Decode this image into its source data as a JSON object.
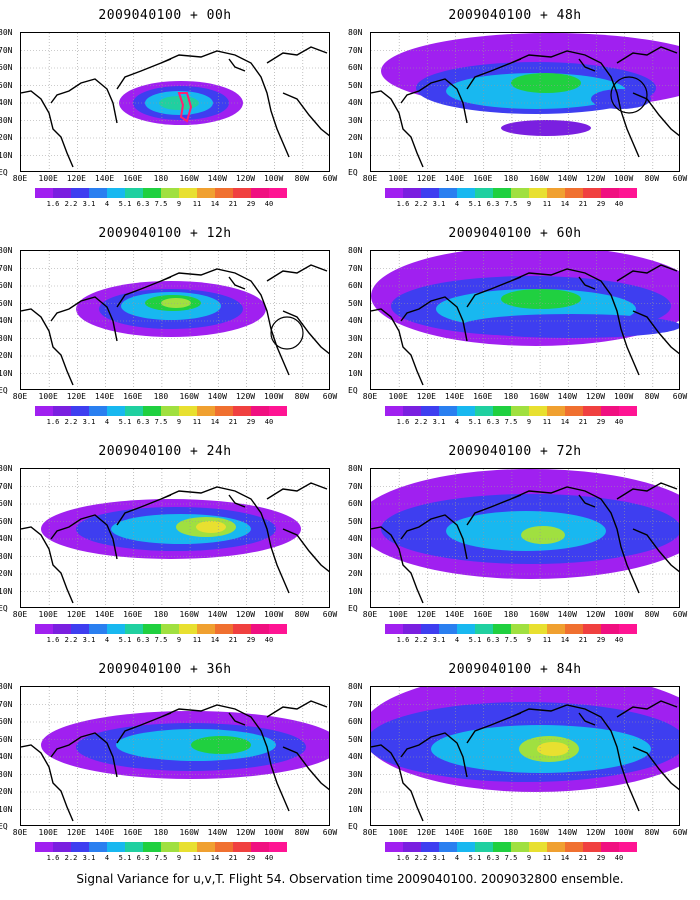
{
  "footer": "Signal Variance for u,v,T. Flight 54. Observation time 2009040100. 2009032800 ensemble.",
  "lat_labels": [
    "80N",
    "70N",
    "60N",
    "50N",
    "40N",
    "30N",
    "20N",
    "10N",
    "EQ"
  ],
  "lon_labels": [
    "80E",
    "100E",
    "120E",
    "140E",
    "160E",
    "180",
    "160W",
    "140W",
    "120W",
    "100W",
    "80W",
    "60W"
  ],
  "colorbar": {
    "labels": [
      "1.6",
      "2.2",
      "3.1",
      "4",
      "5.1",
      "6.3",
      "7.5",
      "9",
      "11",
      "14",
      "21",
      "29",
      "40"
    ],
    "colors": [
      "#a020f0",
      "#7a1fe0",
      "#3e3ef0",
      "#2a7ff0",
      "#18b8f0",
      "#20d0a0",
      "#20d040",
      "#a0e040",
      "#e8e030",
      "#f0a030",
      "#f07030",
      "#f04040",
      "#f01080"
    ]
  },
  "panels": [
    {
      "title": "2009040100 + 00h"
    },
    {
      "title": "2009040100 + 48h"
    },
    {
      "title": "2009040100 + 12h"
    },
    {
      "title": "2009040100 + 60h"
    },
    {
      "title": "2009040100 + 24h"
    },
    {
      "title": "2009040100 + 72h"
    },
    {
      "title": "2009040100 + 36h"
    },
    {
      "title": "2009040100 + 84h"
    }
  ]
}
